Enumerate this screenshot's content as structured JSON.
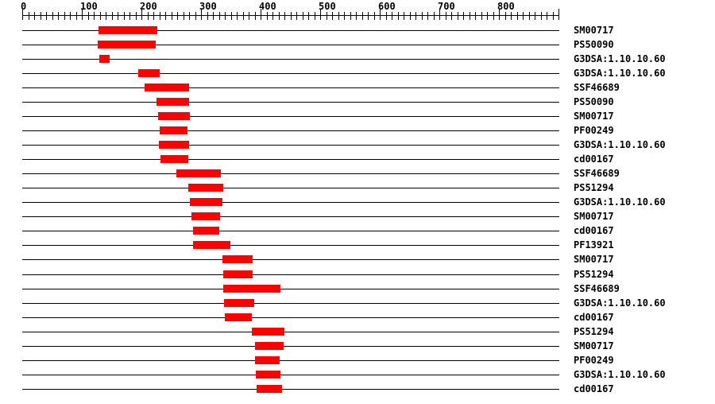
{
  "colors": {
    "background": "#ffffff",
    "bar": "#ff0000",
    "line": "#000000",
    "text": "#000000"
  },
  "chart_data": {
    "type": "bar",
    "subtype": "horizontal-domain-range-map",
    "title": "",
    "xlabel": "",
    "ylabel": "",
    "xlim": [
      0,
      900
    ],
    "major_tick_step": 100,
    "minor_tick_step": 10,
    "grid": false,
    "legend": false,
    "axis_tick_labels": [
      "0",
      "100",
      "200",
      "300",
      "400",
      "500",
      "600",
      "700",
      "800"
    ],
    "rows": [
      {
        "label": "SM00717",
        "start": 128,
        "end": 226
      },
      {
        "label": "PS50090",
        "start": 127,
        "end": 224
      },
      {
        "label": "G3DSA:1.10.10.60",
        "start": 129,
        "end": 146
      },
      {
        "label": "G3DSA:1.10.10.60",
        "start": 195,
        "end": 231
      },
      {
        "label": "SSF46689",
        "start": 205,
        "end": 279
      },
      {
        "label": "PS50090",
        "start": 225,
        "end": 279
      },
      {
        "label": "SM00717",
        "start": 228,
        "end": 281
      },
      {
        "label": "PF00249",
        "start": 230,
        "end": 277
      },
      {
        "label": "G3DSA:1.10.10.60",
        "start": 229,
        "end": 279
      },
      {
        "label": "cd00167",
        "start": 232,
        "end": 278
      },
      {
        "label": "SSF46689",
        "start": 259,
        "end": 334
      },
      {
        "label": "PS51294",
        "start": 278,
        "end": 336
      },
      {
        "label": "G3DSA:1.10.10.60",
        "start": 281,
        "end": 335
      },
      {
        "label": "SM00717",
        "start": 284,
        "end": 332
      },
      {
        "label": "cd00167",
        "start": 286,
        "end": 330
      },
      {
        "label": "PF13921",
        "start": 286,
        "end": 348
      },
      {
        "label": "SM00717",
        "start": 336,
        "end": 386
      },
      {
        "label": "PS51294",
        "start": 337,
        "end": 386
      },
      {
        "label": "SSF46689",
        "start": 337,
        "end": 433
      },
      {
        "label": "G3DSA:1.10.10.60",
        "start": 339,
        "end": 390
      },
      {
        "label": "cd00167",
        "start": 340,
        "end": 385
      },
      {
        "label": "PS51294",
        "start": 385,
        "end": 440
      },
      {
        "label": "SM00717",
        "start": 390,
        "end": 438
      },
      {
        "label": "PF00249",
        "start": 391,
        "end": 432
      },
      {
        "label": "G3DSA:1.10.10.60",
        "start": 392,
        "end": 433
      },
      {
        "label": "cd00167",
        "start": 393,
        "end": 436
      }
    ]
  }
}
